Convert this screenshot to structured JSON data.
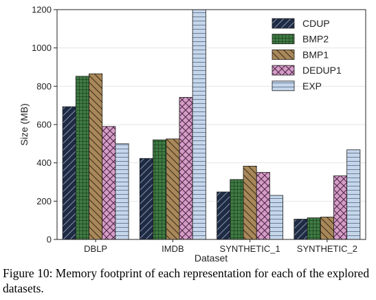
{
  "caption": "Figure 10: Memory footprint of each representation for each of the explored datasets.",
  "chart_data": {
    "type": "bar",
    "title": "",
    "xlabel": "Dataset",
    "ylabel": "Size (MB)",
    "ylim": [
      0,
      1200
    ],
    "yticks": [
      0,
      200,
      400,
      600,
      800,
      1000,
      1200
    ],
    "grid": true,
    "legend_position": "top-right",
    "categories": [
      "DBLP",
      "IMDB",
      "SYNTHETIC_1",
      "SYNTHETIC_2"
    ],
    "series": [
      {
        "name": "CDUP",
        "color": "#1e2b45",
        "hatch": "diagonal-forward",
        "values": [
          693,
          423,
          248,
          106
        ]
      },
      {
        "name": "BMP2",
        "color": "#3f7a43",
        "hatch": "grid",
        "values": [
          852,
          520,
          313,
          113
        ]
      },
      {
        "name": "BMP1",
        "color": "#a8885a",
        "hatch": "diagonal-back",
        "values": [
          865,
          525,
          383,
          117
        ]
      },
      {
        "name": "DEDUP1",
        "color": "#d59cc8",
        "hatch": "crosshatch",
        "values": [
          590,
          742,
          350,
          332
        ]
      },
      {
        "name": "EXP",
        "color": "#c5d6ea",
        "hatch": "horizontal",
        "values": [
          500,
          1200,
          230,
          468
        ]
      }
    ]
  }
}
